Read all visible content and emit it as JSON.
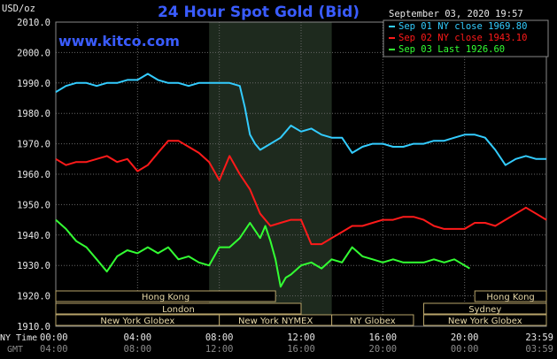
{
  "header": {
    "title": "24 Hour Spot Gold (Bid)",
    "unit": "USD/oz",
    "timestamp": "September 03, 2020 19:57",
    "website": "www.kitco.com"
  },
  "legend": [
    {
      "label": "Sep 01 NY close 1969.80",
      "color": "#33ccff"
    },
    {
      "label": "Sep 02 NY close 1943.10",
      "color": "#ff1a1a"
    },
    {
      "label": "Sep 03 Last 1926.60",
      "color": "#33ff33"
    }
  ],
  "sessions": [
    {
      "label": "Hong Kong",
      "start": 0,
      "end": 10.75,
      "row": 0
    },
    {
      "label": "Hong Kong",
      "start": 20.5,
      "end": 24,
      "row": 0
    },
    {
      "label": "London",
      "start": 0,
      "end": 12,
      "row": 1
    },
    {
      "label": "Sydney",
      "start": 18,
      "end": 24,
      "row": 1
    },
    {
      "label": "New York Globex",
      "start": 0,
      "end": 8,
      "row": 2
    },
    {
      "label": "New York NYMEX",
      "start": 8,
      "end": 13.5,
      "row": 2
    },
    {
      "label": "NY Globex",
      "start": 13.5,
      "end": 17.5,
      "row": 2
    },
    {
      "label": "New York Globex",
      "start": 18,
      "end": 24,
      "row": 2
    }
  ],
  "footer": {
    "ny_time_label": "NY Time",
    "gmt_label": "GMT",
    "ny_times": [
      "00:00",
      "04:00",
      "08:00",
      "12:00",
      "16:00",
      "20:00",
      "23:59"
    ],
    "gmt_times": [
      "04:00",
      "08:00",
      "12:00",
      "16:00",
      "20:00",
      "00:00",
      "03:59"
    ]
  },
  "chart_data": {
    "type": "line",
    "title": "24 Hour Spot Gold (Bid)",
    "ylabel": "USD/oz",
    "xlabel": "NY Time",
    "ylim": [
      1910,
      2010
    ],
    "xlim": [
      0,
      24
    ],
    "yticks": [
      1910.0,
      1920.0,
      1930.0,
      1940.0,
      1950.0,
      1960.0,
      1970.0,
      1980.0,
      1990.0,
      2000.0,
      2010.0
    ],
    "xticks": [
      "00:00",
      "04:00",
      "08:00",
      "12:00",
      "16:00",
      "20:00",
      "23:59"
    ],
    "grid": true,
    "shaded_x_range": [
      7.5,
      13.5
    ],
    "legend_position": "top-right",
    "series": [
      {
        "name": "Sep 01 NY close 1969.80",
        "color": "#33ccff",
        "x": [
          0,
          0.5,
          1,
          1.5,
          2,
          2.5,
          3,
          3.5,
          4,
          4.5,
          5,
          5.5,
          6,
          6.5,
          7,
          7.5,
          8,
          8.5,
          9,
          9.25,
          9.5,
          9.75,
          10,
          10.5,
          11,
          11.5,
          12,
          12.5,
          13,
          13.5,
          14,
          14.5,
          15,
          15.5,
          16,
          16.5,
          17,
          17.5,
          18,
          18.5,
          19,
          19.5,
          20,
          20.5,
          21,
          21.5,
          22,
          22.5,
          23,
          23.5,
          24
        ],
        "y": [
          1987,
          1989,
          1990,
          1990,
          1989,
          1990,
          1990,
          1991,
          1991,
          1993,
          1991,
          1990,
          1990,
          1989,
          1990,
          1990,
          1990,
          1990,
          1989,
          1982,
          1973,
          1970,
          1968,
          1970,
          1972,
          1976,
          1974,
          1975,
          1973,
          1972,
          1972,
          1967,
          1969,
          1970,
          1970,
          1969,
          1969,
          1970,
          1970,
          1971,
          1971,
          1972,
          1973,
          1973,
          1972,
          1968,
          1963,
          1965,
          1966,
          1965,
          1965
        ]
      },
      {
        "name": "Sep 02 NY close 1943.10",
        "color": "#ff1a1a",
        "x": [
          0,
          0.5,
          1,
          1.5,
          2,
          2.5,
          3,
          3.5,
          4,
          4.5,
          5,
          5.5,
          6,
          6.5,
          7,
          7.5,
          8,
          8.5,
          9,
          9.5,
          10,
          10.5,
          11,
          11.5,
          12,
          12.5,
          13,
          13.5,
          14,
          14.5,
          15,
          15.5,
          16,
          16.5,
          17,
          17.5,
          18,
          18.5,
          19,
          19.5,
          20,
          20.5,
          21,
          21.5,
          22,
          22.5,
          23,
          23.5,
          24
        ],
        "y": [
          1965,
          1963,
          1964,
          1964,
          1965,
          1966,
          1964,
          1965,
          1961,
          1963,
          1967,
          1971,
          1971,
          1969,
          1967,
          1964,
          1958,
          1966,
          1960,
          1955,
          1947,
          1943,
          1944,
          1945,
          1945,
          1937,
          1937,
          1939,
          1941,
          1943,
          1943,
          1944,
          1945,
          1945,
          1946,
          1946,
          1945,
          1943,
          1942,
          1942,
          1942,
          1944,
          1944,
          1943,
          1945,
          1947,
          1949,
          1947,
          1945
        ]
      },
      {
        "name": "Sep 03 Last 1926.60",
        "color": "#33ff33",
        "x": [
          0,
          0.5,
          1,
          1.5,
          2,
          2.5,
          3,
          3.5,
          4,
          4.5,
          5,
          5.5,
          6,
          6.5,
          7,
          7.5,
          8,
          8.5,
          9,
          9.5,
          10,
          10.25,
          10.5,
          10.75,
          11,
          11.25,
          11.5,
          12,
          12.5,
          13,
          13.5,
          14,
          14.5,
          15,
          15.5,
          16,
          16.5,
          17,
          17.5,
          18,
          18.5,
          19,
          19.5,
          20,
          20.25
        ],
        "y": [
          1945,
          1942,
          1938,
          1936,
          1932,
          1928,
          1933,
          1935,
          1934,
          1936,
          1934,
          1936,
          1932,
          1933,
          1931,
          1930,
          1936,
          1936,
          1939,
          1944,
          1939,
          1943,
          1938,
          1932,
          1923,
          1926,
          1927,
          1930,
          1931,
          1929,
          1932,
          1931,
          1936,
          1933,
          1932,
          1931,
          1932,
          1931,
          1931,
          1931,
          1932,
          1931,
          1932,
          1930,
          1929
        ]
      }
    ]
  }
}
